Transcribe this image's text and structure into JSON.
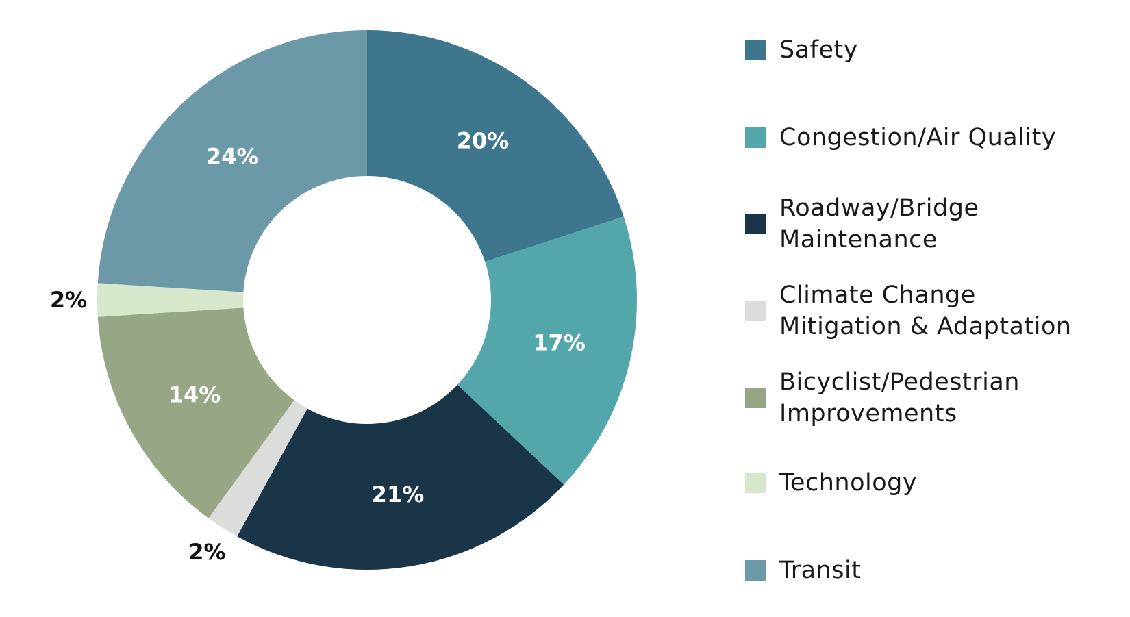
{
  "chart_data": {
    "type": "pie",
    "donut": true,
    "title": "",
    "legend_position": "right",
    "categories": [
      "Safety",
      "Congestion/Air Quality",
      "Roadway/Bridge Maintenance",
      "Climate Change Mitigation & Adaptation",
      "Bicyclist/Pedestrian Improvements",
      "Technology",
      "Transit"
    ],
    "values": [
      20,
      17,
      21,
      2,
      14,
      2,
      24
    ],
    "labels": [
      "20%",
      "17%",
      "21%",
      "2%",
      "14%",
      "2%",
      "24%"
    ],
    "colors": [
      "#3e768d",
      "#53a7aa",
      "#1b3548",
      "#dcdcdb",
      "#97a786",
      "#d7e7cb",
      "#6b99a8"
    ],
    "label_colors": [
      "#ffffff",
      "#ffffff",
      "#ffffff",
      "#111111",
      "#ffffff",
      "#111111",
      "#ffffff"
    ]
  },
  "legend": {
    "items": [
      {
        "label": "Safety",
        "color": "#3e768d"
      },
      {
        "label": "Congestion/Air Quality",
        "color": "#53a7aa"
      },
      {
        "label": "Roadway/Bridge\nMaintenance",
        "color": "#1b3548"
      },
      {
        "label": "Climate Change\nMitigation & Adaptation",
        "color": "#dcdcdb"
      },
      {
        "label": "Bicyclist/Pedestrian\nImprovements",
        "color": "#97a786"
      },
      {
        "label": "Technology",
        "color": "#d7e7cb"
      },
      {
        "label": "Transit",
        "color": "#6b99a8"
      }
    ]
  }
}
